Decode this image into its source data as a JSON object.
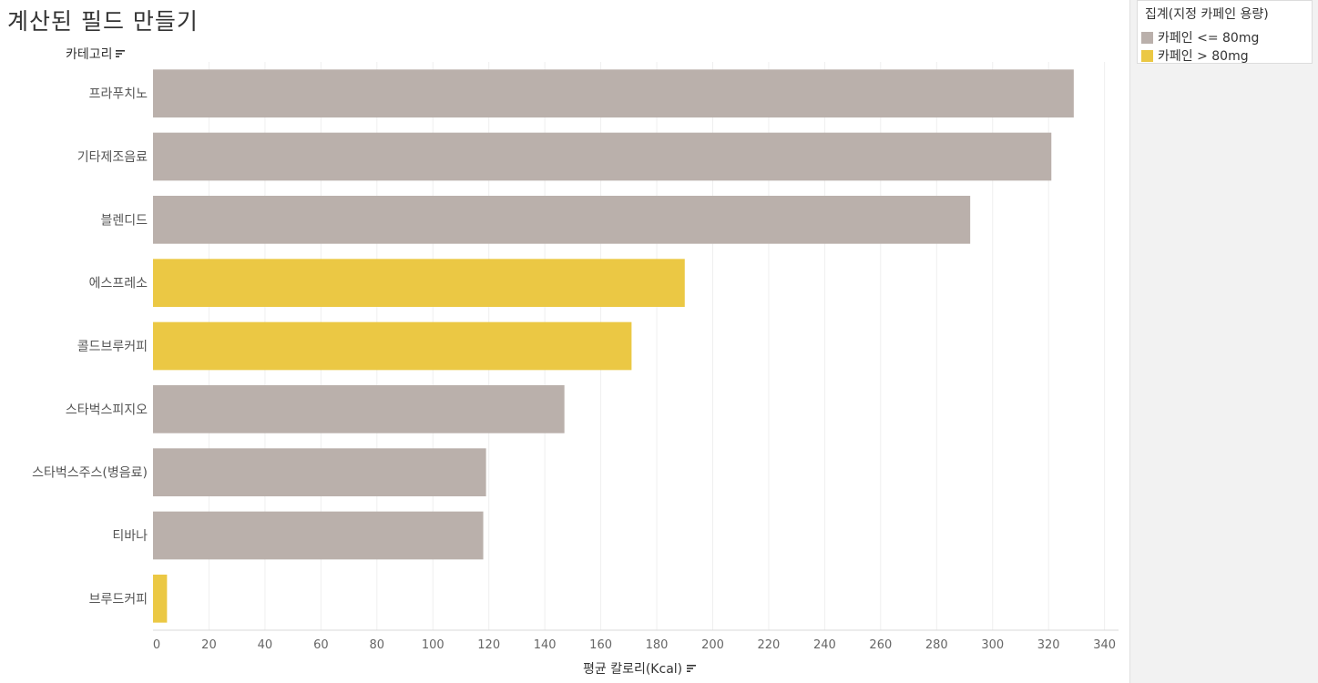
{
  "page": {
    "title": "계산된 필드 만들기",
    "category_header": "카테고리"
  },
  "legend": {
    "title": "집계(지정 카페인 용량)",
    "items": [
      {
        "label": "카페인 <= 80mg",
        "color": "#bab0ab"
      },
      {
        "label": "카페인 > 80mg",
        "color": "#ebc844"
      }
    ]
  },
  "chart_data": {
    "type": "bar",
    "orientation": "horizontal",
    "categories": [
      "프라푸치노",
      "기타제조음료",
      "블렌디드",
      "에스프레소",
      "콜드브루커피",
      "스타벅스피지오",
      "스타벅스주스(병음료)",
      "티바나",
      "브루드커피"
    ],
    "values": [
      329,
      321,
      292,
      190,
      171,
      147,
      119,
      118,
      5
    ],
    "color_group": [
      "카페인 <= 80mg",
      "카페인 <= 80mg",
      "카페인 <= 80mg",
      "카페인 > 80mg",
      "카페인 > 80mg",
      "카페인 <= 80mg",
      "카페인 <= 80mg",
      "카페인 <= 80mg",
      "카페인 > 80mg"
    ],
    "xlabel": "평균 칼로리(Kcal)",
    "ylabel": "카테고리",
    "xlim": [
      0,
      345
    ],
    "xticks": [
      0,
      20,
      40,
      60,
      80,
      100,
      120,
      140,
      160,
      180,
      200,
      220,
      240,
      260,
      280,
      300,
      320,
      340
    ],
    "grid": "vertical",
    "legend_position": "top-right"
  }
}
